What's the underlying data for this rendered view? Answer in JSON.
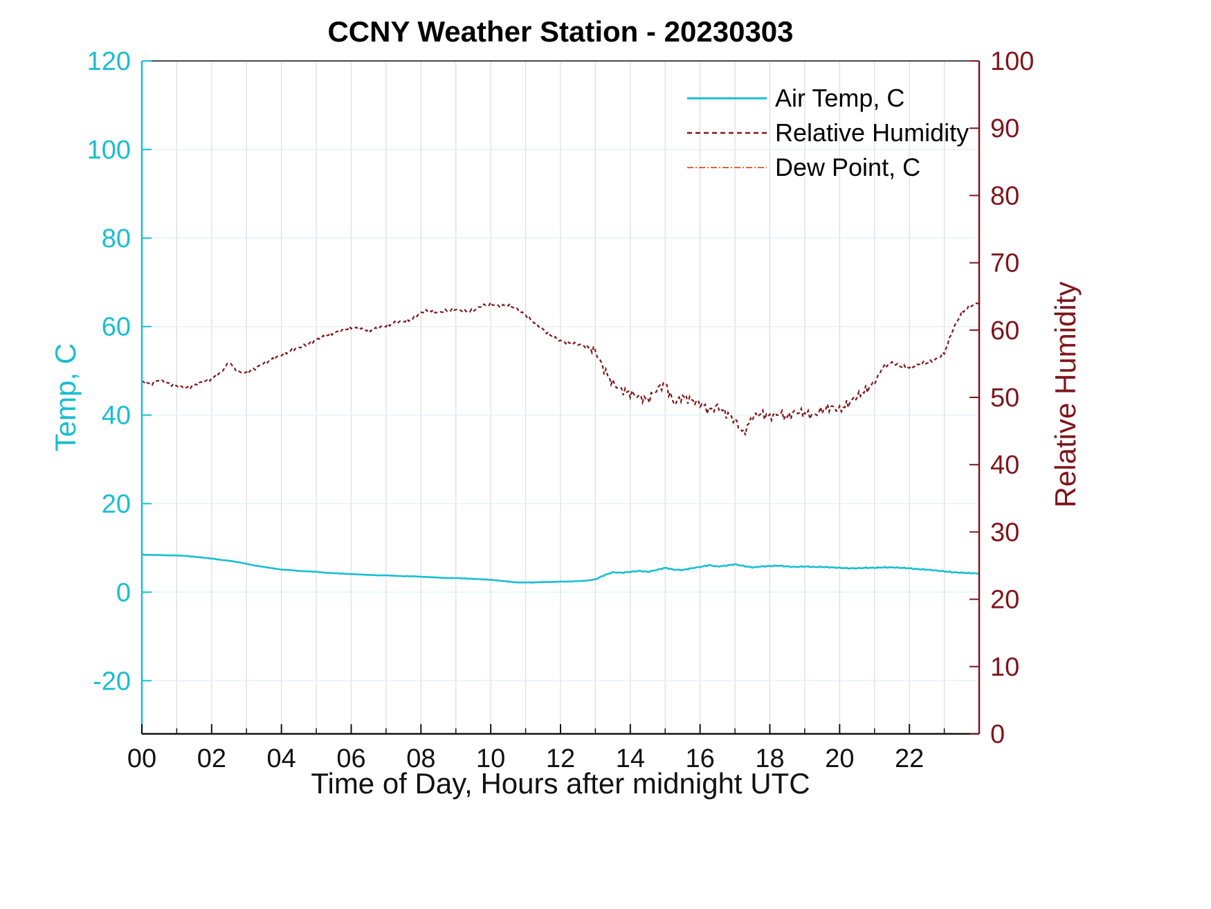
{
  "chart_data": {
    "type": "line",
    "title": "CCNY Weather Station - 20230303",
    "xlabel": "Time of Day, Hours after midnight UTC",
    "left_ylabel": "Temp, C",
    "right_ylabel": "Relative Humidity",
    "xlim": [
      0,
      24
    ],
    "x_tick_values": [
      0,
      2,
      4,
      6,
      8,
      10,
      12,
      14,
      16,
      18,
      20,
      22
    ],
    "x_tick_labels": [
      "00",
      "02",
      "04",
      "06",
      "08",
      "10",
      "12",
      "14",
      "16",
      "18",
      "20",
      "22"
    ],
    "x_minor_grid_step_hours": 1,
    "left_ylim": [
      -32,
      120
    ],
    "left_ticks": [
      -20,
      0,
      20,
      40,
      60,
      80,
      100,
      120
    ],
    "right_ylim": [
      0,
      100
    ],
    "right_ticks": [
      0,
      10,
      20,
      30,
      40,
      50,
      60,
      70,
      80,
      90,
      100
    ],
    "grid": true,
    "legend_position": "top-right-inside",
    "colors": {
      "temp": "#18BED2",
      "humidity": "#7F161B",
      "dew": "#D95319",
      "vgrid": "#DCDCDC",
      "hgrid": "#DFF3F7",
      "axis_x": "#111111"
    },
    "series": [
      {
        "name": "Air Temp, C",
        "axis": "left",
        "style": "solid",
        "color_key": "temp",
        "x_start": 0,
        "x_step": 0.25,
        "values": [
          8.5,
          8.4,
          8.4,
          8.3,
          8.3,
          8.2,
          8.0,
          7.8,
          7.6,
          7.3,
          7.1,
          6.8,
          6.4,
          6.0,
          5.7,
          5.4,
          5.1,
          5.0,
          4.8,
          4.7,
          4.6,
          4.4,
          4.3,
          4.2,
          4.1,
          4.0,
          3.9,
          3.8,
          3.8,
          3.7,
          3.6,
          3.6,
          3.5,
          3.4,
          3.3,
          3.2,
          3.2,
          3.1,
          3.0,
          2.9,
          2.8,
          2.6,
          2.4,
          2.2,
          2.2,
          2.2,
          2.3,
          2.3,
          2.4,
          2.4,
          2.5,
          2.6,
          2.9,
          3.8,
          4.5,
          4.4,
          4.6,
          4.8,
          4.6,
          5.0,
          5.5,
          5.1,
          5.0,
          5.4,
          5.7,
          6.1,
          5.8,
          6.0,
          6.3,
          5.9,
          5.6,
          5.8,
          5.9,
          6.0,
          5.8,
          5.7,
          5.8,
          5.7,
          5.7,
          5.6,
          5.5,
          5.4,
          5.4,
          5.5,
          5.5,
          5.6,
          5.6,
          5.5,
          5.4,
          5.2,
          5.1,
          4.9,
          4.7,
          4.5,
          4.4,
          4.3,
          4.2
        ]
      },
      {
        "name": "Relative Humidity",
        "axis": "right",
        "style": "dashed",
        "color_key": "humidity",
        "x_start": 0,
        "x_step": 0.25,
        "values": [
          52.3,
          52.0,
          52.6,
          52.1,
          51.7,
          51.4,
          51.8,
          52.3,
          52.8,
          53.6,
          55.2,
          53.8,
          53.6,
          54.3,
          55.1,
          55.7,
          56.3,
          56.9,
          57.4,
          57.9,
          58.6,
          59.1,
          59.6,
          59.9,
          60.4,
          60.2,
          59.9,
          60.3,
          60.6,
          61.1,
          61.3,
          61.6,
          62.6,
          62.9,
          62.6,
          62.9,
          63.1,
          62.8,
          62.9,
          63.6,
          63.9,
          63.5,
          63.8,
          63.1,
          62.2,
          61.1,
          60.1,
          59.1,
          58.4,
          58.1,
          57.9,
          57.6,
          56.9,
          54.1,
          52.1,
          51.1,
          50.6,
          50.1,
          49.6,
          51.1,
          52.1,
          49.1,
          50.1,
          49.6,
          49.1,
          48.1,
          48.6,
          47.6,
          46.6,
          44.6,
          47.1,
          47.6,
          47.1,
          47.6,
          47.1,
          47.9,
          47.6,
          47.3,
          48.1,
          48.6,
          48.1,
          49.1,
          50.1,
          51.1,
          52.1,
          54.6,
          55.1,
          54.6,
          54.4,
          54.9,
          55.1,
          55.6,
          56.6,
          60.1,
          62.6,
          63.6,
          64.1
        ]
      },
      {
        "name": "Dew Point, C",
        "axis": "left",
        "style": "dashdot",
        "color_key": "dew",
        "x_start": 0,
        "x_step": 0.25,
        "values": []
      }
    ]
  }
}
